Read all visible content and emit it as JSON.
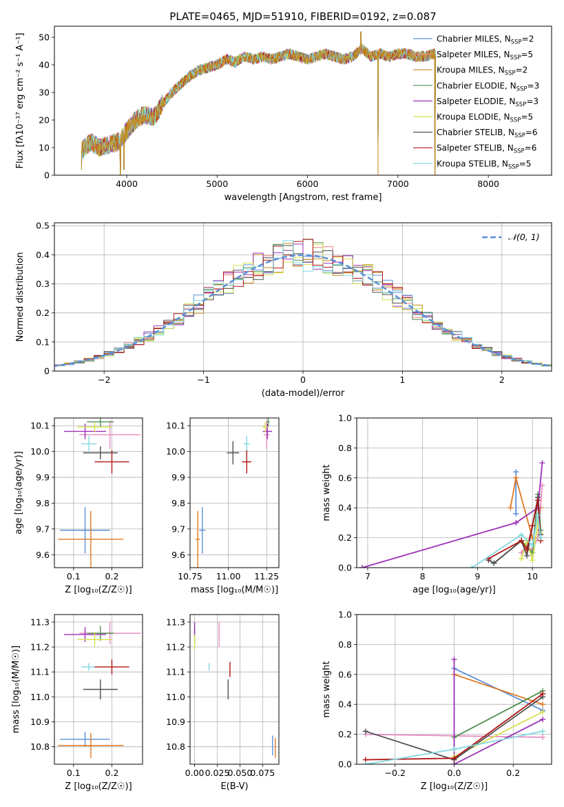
{
  "figure_title": "PLATE=0465, MJD=51910, FIBERID=0192, z=0.087",
  "colors": {
    "Chabrier MILES": "#5b8fd9",
    "Salpeter MILES": "#f08080",
    "Kroupa MILES": "#c48a1a",
    "Chabrier ELODIE": "#4f8f4f",
    "Salpeter ELODIE": "#9b30b8",
    "Kroupa ELODIE": "#d4e04a",
    "Chabrier STELIB": "#505050",
    "Salpeter STELIB": "#b01515",
    "Kroupa STELIB": "#7fd8e0",
    "orange": "#e07820",
    "pink": "#e88bc0",
    "normal_curve": "#5b8fd9"
  },
  "chart_data": [
    {
      "id": "spectrum",
      "type": "line",
      "title": "PLATE=0465, MJD=51910, FIBERID=0192, z=0.087",
      "xlabel": "wavelength [Angstrom, rest frame]",
      "ylabel": "Flux [fλ10⁻¹⁷ erg cm⁻² s⁻¹ A⁻¹]",
      "xlim": [
        3200,
        8700
      ],
      "ylim": [
        0,
        54
      ],
      "xticks": [
        4000,
        5000,
        6000,
        7000,
        8000
      ],
      "yticks": [
        0,
        10,
        20,
        30,
        40,
        50
      ],
      "grid": false,
      "legend_position": "top-right",
      "legend": [
        {
          "text": "Chabrier MILES, N",
          "sub": "SSP",
          "suffix": "=2",
          "color": "#5b8fd9"
        },
        {
          "text": "Salpeter MILES, N",
          "sub": "SSP",
          "suffix": "=5",
          "color": "#f08080"
        },
        {
          "text": "Kroupa MILES, N",
          "sub": "SSP",
          "suffix": "=2",
          "color": "#c48a1a"
        },
        {
          "text": "Chabrier ELODIE, N",
          "sub": "SSP",
          "suffix": "=3",
          "color": "#4f8f4f"
        },
        {
          "text": "Salpeter ELODIE, N",
          "sub": "SSP",
          "suffix": "=3",
          "color": "#9b30b8"
        },
        {
          "text": "Kroupa ELODIE, N",
          "sub": "SSP",
          "suffix": "=5",
          "color": "#d4e04a"
        },
        {
          "text": "Chabrier STELIB, N",
          "sub": "SSP",
          "suffix": "=6",
          "color": "#505050"
        },
        {
          "text": "Salpeter STELIB, N",
          "sub": "SSP",
          "suffix": "=6",
          "color": "#b01515"
        },
        {
          "text": "Kroupa STELIB, N",
          "sub": "SSP",
          "suffix": "=5",
          "color": "#7fd8e0"
        }
      ],
      "x": [
        3500,
        3600,
        3700,
        3800,
        3900,
        4000,
        4100,
        4200,
        4300,
        4400,
        4500,
        4600,
        4700,
        4800,
        4900,
        5000,
        5100,
        5200,
        5300,
        5400,
        5500,
        5600,
        5700,
        5800,
        5900,
        6000,
        6100,
        6200,
        6300,
        6400,
        6500,
        6600,
        6700,
        6800,
        6900,
        7000,
        7100,
        7200,
        7300,
        7400
      ],
      "y": [
        9,
        12,
        10,
        11,
        12,
        16,
        20,
        22,
        21,
        26,
        30,
        33,
        36,
        38,
        39,
        40,
        42,
        41,
        43,
        42,
        43,
        42,
        43,
        44,
        43,
        42,
        43,
        44,
        43,
        42,
        43,
        46,
        43,
        44,
        43,
        44,
        44,
        43,
        43,
        44
      ],
      "spikes": [
        {
          "x": 3500,
          "y": 2
        },
        {
          "x": 3930,
          "y": 0
        },
        {
          "x": 3970,
          "y": 2
        },
        {
          "x": 6590,
          "y": 52
        },
        {
          "x": 6780,
          "y": 0
        },
        {
          "x": 7410,
          "y": 0
        }
      ]
    },
    {
      "id": "residual_histogram",
      "type": "histogram",
      "xlabel": "(data-model)/error",
      "ylabel": "Normed distribution",
      "xlim": [
        -2.5,
        2.5
      ],
      "ylim": [
        0,
        0.51
      ],
      "xticks": [
        -2,
        -1,
        0,
        1,
        2
      ],
      "xtick_labels": [
        "−2",
        "−1",
        "0",
        "1",
        "2"
      ],
      "yticks": [
        0.0,
        0.1,
        0.2,
        0.3,
        0.4,
        0.5
      ],
      "grid": true,
      "legend_position": "top-right",
      "legend": [
        {
          "text": "𝒩(0, 1)",
          "color": "#5b8fd9",
          "style": "dashed"
        }
      ],
      "bin_width": 0.1,
      "reference_curve": "normal(0,1)"
    },
    {
      "id": "age_vs_Z",
      "type": "errorbar",
      "xlabel": "Z [log₁₀(Z/Z☉)]",
      "ylabel": "age  [log₁₀(age/yr)]",
      "xlim": [
        0.05,
        0.28
      ],
      "ylim": [
        9.55,
        10.13
      ],
      "xticks": [
        0.1,
        0.2
      ],
      "yticks": [
        9.6,
        9.7,
        9.8,
        9.9,
        10.0,
        10.1
      ],
      "grid": true,
      "points": [
        {
          "x": 0.13,
          "xerr": 0.065,
          "y": 9.695,
          "yerr": 0.09,
          "color": "#5b8fd9"
        },
        {
          "x": 0.145,
          "xerr": 0.085,
          "y": 9.66,
          "yerr": 0.11,
          "color": "#e07820"
        },
        {
          "x": 0.195,
          "xerr": 0.08,
          "y": 10.065,
          "yerr": 0.055,
          "color": "#e88bc0"
        },
        {
          "x": 0.17,
          "xerr": 0.035,
          "y": 10.115,
          "yerr": 0.02,
          "color": "#4f8f4f"
        },
        {
          "x": 0.13,
          "xerr": 0.055,
          "y": 10.078,
          "yerr": 0.03,
          "color": "#9b30b8"
        },
        {
          "x": 0.155,
          "xerr": 0.045,
          "y": 10.095,
          "yerr": 0.02,
          "color": "#d4e04a"
        },
        {
          "x": 0.14,
          "xerr": 0.02,
          "y": 10.03,
          "yerr": 0.03,
          "color": "#7fd8e0"
        },
        {
          "x": 0.17,
          "xerr": 0.045,
          "y": 9.995,
          "yerr": 0.025,
          "color": "#505050"
        },
        {
          "x": 0.2,
          "xerr": 0.045,
          "y": 9.96,
          "yerr": 0.045,
          "color": "#b01515"
        }
      ]
    },
    {
      "id": "age_vs_mass",
      "type": "errorbar",
      "xlabel": "mass [log₁₀(M/M☉)]",
      "ylabel": "",
      "xlim": [
        10.75,
        11.33
      ],
      "ylim": [
        9.55,
        10.13
      ],
      "xticks": [
        10.75,
        11.0,
        11.25
      ],
      "xtick_labels": [
        "10.75",
        "11.00",
        "11.25"
      ],
      "yticks": [
        9.6,
        9.7,
        9.8,
        9.9,
        10.0,
        10.1
      ],
      "grid": true,
      "points": [
        {
          "x": 10.83,
          "xerr": 0.02,
          "y": 9.695,
          "yerr": 0.09,
          "color": "#5b8fd9"
        },
        {
          "x": 10.8,
          "xerr": 0.015,
          "y": 9.66,
          "yerr": 0.11,
          "color": "#e07820"
        },
        {
          "x": 11.25,
          "xerr": 0.02,
          "y": 10.065,
          "yerr": 0.055,
          "color": "#e88bc0"
        },
        {
          "x": 11.26,
          "xerr": 0.01,
          "y": 10.115,
          "yerr": 0.02,
          "color": "#4f8f4f"
        },
        {
          "x": 11.255,
          "xerr": 0.03,
          "y": 10.078,
          "yerr": 0.03,
          "color": "#9b30b8"
        },
        {
          "x": 11.24,
          "xerr": 0.02,
          "y": 10.095,
          "yerr": 0.02,
          "color": "#d4e04a"
        },
        {
          "x": 11.12,
          "xerr": 0.02,
          "y": 10.03,
          "yerr": 0.03,
          "color": "#7fd8e0"
        },
        {
          "x": 11.03,
          "xerr": 0.04,
          "y": 9.995,
          "yerr": 0.045,
          "color": "#505050"
        },
        {
          "x": 11.12,
          "xerr": 0.03,
          "y": 9.96,
          "yerr": 0.045,
          "color": "#b01515"
        }
      ]
    },
    {
      "id": "mass_weight_vs_age",
      "type": "line",
      "xlabel": "age  [log₁₀(age/yr)]",
      "ylabel": "mass weight",
      "xlim": [
        6.8,
        10.35
      ],
      "ylim": [
        0,
        1.0
      ],
      "xticks": [
        7,
        8,
        9,
        10
      ],
      "yticks": [
        0.0,
        0.2,
        0.4,
        0.6,
        0.8,
        1.0
      ],
      "grid": true,
      "series": [
        {
          "color": "#5b8fd9",
          "x": [
            9.7,
            9.7
          ],
          "y": [
            0.36,
            0.64
          ]
        },
        {
          "color": "#e07820",
          "x": [
            9.6,
            9.7,
            9.7,
            10.0,
            10.1,
            10.15
          ],
          "y": [
            0.4,
            0.6,
            0.6,
            0.2,
            0.2,
            0.4
          ]
        },
        {
          "color": "#e88bc0",
          "x": [
            9.8,
            9.9,
            10.0,
            10.1,
            10.18
          ],
          "y": [
            0.1,
            0.15,
            0.12,
            0.2,
            0.55
          ]
        },
        {
          "color": "#4f8f4f",
          "x": [
            9.3,
            9.8,
            10.0,
            10.1,
            10.15
          ],
          "y": [
            0.03,
            0.18,
            0.1,
            0.49,
            0.25
          ]
        },
        {
          "color": "#9b30b8",
          "x": [
            6.9,
            9.7,
            10.1,
            10.18
          ],
          "y": [
            0.0,
            0.3,
            0.4,
            0.7
          ]
        },
        {
          "color": "#d4e04a",
          "x": [
            9.8,
            9.9,
            10.0,
            10.1,
            10.15
          ],
          "y": [
            0.06,
            0.18,
            0.05,
            0.3,
            0.23
          ]
        },
        {
          "color": "#505050",
          "x": [
            9.2,
            9.3,
            9.8,
            9.9,
            10.0,
            10.1,
            10.15
          ],
          "y": [
            0.05,
            0.03,
            0.18,
            0.08,
            0.28,
            0.47,
            0.22
          ]
        },
        {
          "color": "#b01515",
          "x": [
            9.2,
            9.8,
            9.9,
            10.0,
            10.1,
            10.15
          ],
          "y": [
            0.06,
            0.18,
            0.12,
            0.28,
            0.45,
            0.18
          ]
        },
        {
          "color": "#7fd8e0",
          "x": [
            8.9,
            9.8,
            10.0,
            10.1,
            10.15
          ],
          "y": [
            0.0,
            0.22,
            0.15,
            0.35,
            0.2
          ]
        }
      ]
    },
    {
      "id": "mass_vs_Z",
      "type": "errorbar",
      "xlabel": "Z [log₁₀(Z/Z☉)]",
      "ylabel": "mass [log₁₀(M/M☉)]",
      "xlim": [
        0.05,
        0.28
      ],
      "ylim": [
        10.73,
        11.33
      ],
      "xticks": [
        0.1,
        0.2
      ],
      "yticks": [
        10.8,
        10.9,
        11.0,
        11.1,
        11.2,
        11.3
      ],
      "grid": true,
      "points": [
        {
          "x": 0.13,
          "xerr": 0.065,
          "y": 10.83,
          "yerr": 0.03,
          "color": "#5b8fd9"
        },
        {
          "x": 0.145,
          "xerr": 0.085,
          "y": 10.805,
          "yerr": 0.05,
          "color": "#e07820"
        },
        {
          "x": 0.195,
          "xerr": 0.08,
          "y": 11.255,
          "yerr": 0.045,
          "color": "#e88bc0"
        },
        {
          "x": 0.17,
          "xerr": 0.035,
          "y": 11.255,
          "yerr": 0.03,
          "color": "#4f8f4f"
        },
        {
          "x": 0.13,
          "xerr": 0.055,
          "y": 11.25,
          "yerr": 0.03,
          "color": "#9b30b8"
        },
        {
          "x": 0.155,
          "xerr": 0.045,
          "y": 11.23,
          "yerr": 0.03,
          "color": "#d4e04a"
        },
        {
          "x": 0.14,
          "xerr": 0.02,
          "y": 11.12,
          "yerr": 0.015,
          "color": "#7fd8e0"
        },
        {
          "x": 0.17,
          "xerr": 0.045,
          "y": 11.03,
          "yerr": 0.04,
          "color": "#505050"
        },
        {
          "x": 0.2,
          "xerr": 0.045,
          "y": 11.12,
          "yerr": 0.03,
          "color": "#b01515"
        }
      ]
    },
    {
      "id": "mass_vs_EBV",
      "type": "errorbar",
      "xlabel": "E(B-V)",
      "ylabel": "",
      "xlim": [
        -0.005,
        0.093
      ],
      "ylim": [
        10.73,
        11.33
      ],
      "xticks": [
        0.0,
        0.025,
        0.05,
        0.075
      ],
      "xtick_labels": [
        "0.00",
        "0.025",
        "0.050",
        "0.075"
      ],
      "yticks": [
        10.8,
        10.9,
        11.0,
        11.1,
        11.2,
        11.3
      ],
      "grid": true,
      "points": [
        {
          "x": 0.086,
          "xerr": 0,
          "y": 10.805,
          "yerr": 0.04,
          "color": "#5b8fd9"
        },
        {
          "x": 0.089,
          "xerr": 0,
          "y": 10.795,
          "yerr": 0.04,
          "color": "#e07820"
        },
        {
          "x": 0.027,
          "xerr": 0,
          "y": 11.25,
          "yerr": 0.05,
          "color": "#e88bc0"
        },
        {
          "x": 0.0,
          "xerr": 0,
          "y": 11.25,
          "yerr": 0.03,
          "color": "#4f8f4f"
        },
        {
          "x": 0.0,
          "xerr": 0,
          "y": 11.27,
          "yerr": 0.03,
          "color": "#9b30b8"
        },
        {
          "x": 0.0,
          "xerr": 0,
          "y": 11.22,
          "yerr": 0.03,
          "color": "#d4e04a"
        },
        {
          "x": 0.016,
          "xerr": 0,
          "y": 11.12,
          "yerr": 0.015,
          "color": "#7fd8e0"
        },
        {
          "x": 0.037,
          "xerr": 0,
          "y": 11.03,
          "yerr": 0.04,
          "color": "#505050"
        },
        {
          "x": 0.039,
          "xerr": 0,
          "y": 11.11,
          "yerr": 0.03,
          "color": "#b01515"
        }
      ]
    },
    {
      "id": "mass_weight_vs_Z",
      "type": "line",
      "xlabel": "Z [log₁₀(Z/Z☉)]",
      "ylabel": "mass weight",
      "xlim": [
        -0.33,
        0.33
      ],
      "ylim": [
        0,
        1.0
      ],
      "xticks": [
        -0.2,
        0.0,
        0.2
      ],
      "xtick_labels": [
        "−0.2",
        "0.0",
        "0.2"
      ],
      "yticks": [
        0.0,
        0.2,
        0.4,
        0.6,
        0.8,
        1.0
      ],
      "grid": true,
      "series": [
        {
          "color": "#5b8fd9",
          "x": [
            0.0,
            0.3
          ],
          "y": [
            0.64,
            0.36
          ]
        },
        {
          "color": "#e07820",
          "x": [
            0.0,
            0.3
          ],
          "y": [
            0.6,
            0.4
          ]
        },
        {
          "color": "#e88bc0",
          "x": [
            -0.3,
            0.0,
            0.3
          ],
          "y": [
            0.2,
            0.19,
            0.18
          ]
        },
        {
          "color": "#4f8f4f",
          "x": [
            0.0,
            0.3
          ],
          "y": [
            0.18,
            0.49
          ]
        },
        {
          "color": "#9b30b8",
          "x": [
            0.0,
            0.0,
            0.3
          ],
          "y": [
            0.7,
            0.0,
            0.3
          ]
        },
        {
          "color": "#d4e04a",
          "x": [
            0.0,
            0.3
          ],
          "y": [
            0.05,
            0.35
          ]
        },
        {
          "color": "#505050",
          "x": [
            -0.3,
            0.0,
            0.3
          ],
          "y": [
            0.22,
            0.03,
            0.45
          ]
        },
        {
          "color": "#b01515",
          "x": [
            -0.3,
            0.0,
            0.3
          ],
          "y": [
            0.03,
            0.04,
            0.47
          ]
        },
        {
          "color": "#7fd8e0",
          "x": [
            -0.3,
            0.0,
            0.3
          ],
          "y": [
            0.0,
            0.1,
            0.22
          ]
        }
      ]
    }
  ]
}
